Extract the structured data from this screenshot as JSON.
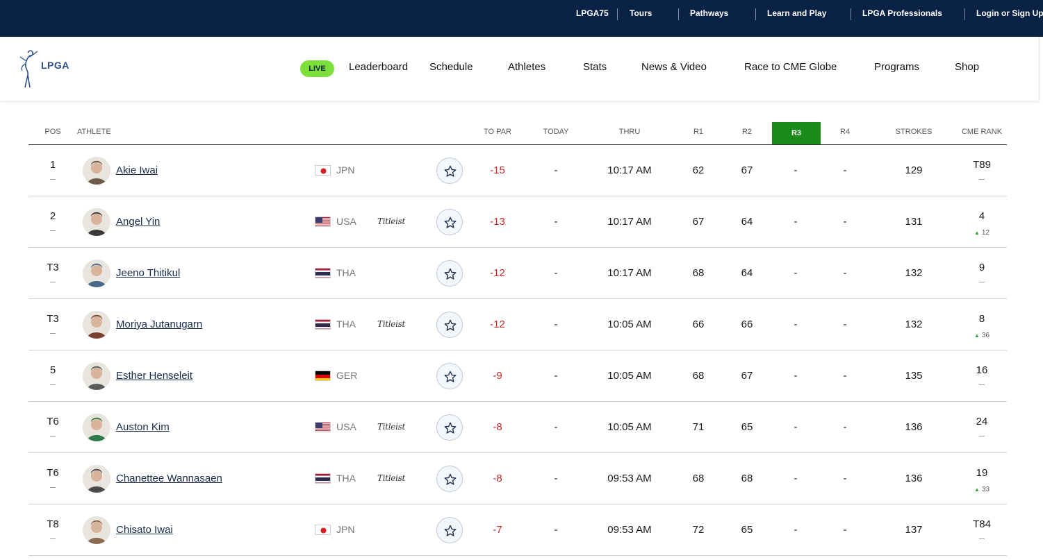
{
  "top_nav": {
    "links": [
      "LPGA75",
      "Tours",
      "Pathways",
      "Learn and Play",
      "LPGA Professionals",
      "Login or Sign Up"
    ]
  },
  "header": {
    "logo_text": "LPGA",
    "live_label": "LIVE",
    "nav": [
      "Leaderboard",
      "Schedule",
      "Athletes",
      "Stats",
      "News & Video",
      "Race to CME Globe",
      "Programs",
      "Shop"
    ]
  },
  "table": {
    "columns": {
      "pos": "POS",
      "athlete": "ATHLETE",
      "to_par": "TO PAR",
      "today": "TODAY",
      "thru": "THRU",
      "r1": "R1",
      "r2": "R2",
      "r3": "R3",
      "r4": "R4",
      "strokes": "STROKES",
      "cme_rank": "CME RANK"
    },
    "rows": [
      {
        "pos": "1",
        "name": "Akie Iwai",
        "country": "JPN",
        "flag": "jpn",
        "sponsor": "",
        "to_par": "-15",
        "today": "-",
        "thru": "10:17 AM",
        "r1": "62",
        "r2": "67",
        "r3": "-",
        "r4": "-",
        "strokes": "129",
        "cme": "T89",
        "cme_move": ""
      },
      {
        "pos": "2",
        "name": "Angel Yin",
        "country": "USA",
        "flag": "usa",
        "sponsor": "Titleist",
        "to_par": "-13",
        "today": "-",
        "thru": "10:17 AM",
        "r1": "67",
        "r2": "64",
        "r3": "-",
        "r4": "-",
        "strokes": "131",
        "cme": "4",
        "cme_move": "12"
      },
      {
        "pos": "T3",
        "name": "Jeeno Thitikul",
        "country": "THA",
        "flag": "tha",
        "sponsor": "",
        "to_par": "-12",
        "today": "-",
        "thru": "10:17 AM",
        "r1": "68",
        "r2": "64",
        "r3": "-",
        "r4": "-",
        "strokes": "132",
        "cme": "9",
        "cme_move": ""
      },
      {
        "pos": "T3",
        "name": "Moriya Jutanugarn",
        "country": "THA",
        "flag": "tha",
        "sponsor": "Titleist",
        "to_par": "-12",
        "today": "-",
        "thru": "10:05 AM",
        "r1": "66",
        "r2": "66",
        "r3": "-",
        "r4": "-",
        "strokes": "132",
        "cme": "8",
        "cme_move": "36"
      },
      {
        "pos": "5",
        "name": "Esther Henseleit",
        "country": "GER",
        "flag": "ger",
        "sponsor": "",
        "to_par": "-9",
        "today": "-",
        "thru": "10:05 AM",
        "r1": "68",
        "r2": "67",
        "r3": "-",
        "r4": "-",
        "strokes": "135",
        "cme": "16",
        "cme_move": ""
      },
      {
        "pos": "T6",
        "name": "Auston Kim",
        "country": "USA",
        "flag": "usa",
        "sponsor": "Titleist",
        "to_par": "-8",
        "today": "-",
        "thru": "10:05 AM",
        "r1": "71",
        "r2": "65",
        "r3": "-",
        "r4": "-",
        "strokes": "136",
        "cme": "24",
        "cme_move": ""
      },
      {
        "pos": "T6",
        "name": "Chanettee Wannasaen",
        "country": "THA",
        "flag": "tha",
        "sponsor": "Titleist",
        "to_par": "-8",
        "today": "-",
        "thru": "09:53 AM",
        "r1": "68",
        "r2": "68",
        "r3": "-",
        "r4": "-",
        "strokes": "136",
        "cme": "19",
        "cme_move": "33"
      },
      {
        "pos": "T8",
        "name": "Chisato Iwai",
        "country": "JPN",
        "flag": "jpn",
        "sponsor": "",
        "to_par": "-7",
        "today": "-",
        "thru": "09:53 AM",
        "r1": "72",
        "r2": "65",
        "r3": "-",
        "r4": "-",
        "strokes": "137",
        "cme": "T84",
        "cme_move": ""
      }
    ]
  },
  "colors": {
    "top_bar": "#0b2247",
    "live_badge": "#7cdf3a",
    "active_round": "#1a8a1a",
    "under_par": "#c62828",
    "rank_up": "#2e9a2e"
  }
}
